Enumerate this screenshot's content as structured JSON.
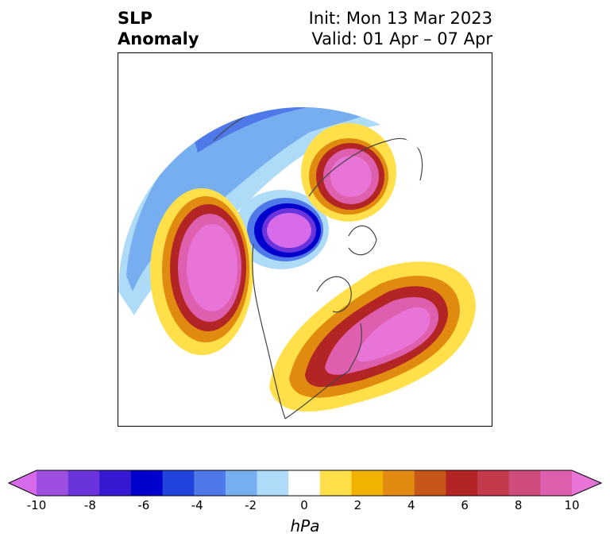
{
  "title": {
    "left_line1": "SLP",
    "left_line2": "Anomaly",
    "right_line1": "Init: Mon 13 Mar 2023",
    "right_line2": "Valid: 01 Apr – 07 Apr"
  },
  "colorbar": {
    "unit": "hPa",
    "ticks": [
      "-10",
      "-8",
      "-6",
      "-4",
      "-2",
      "0",
      "2",
      "4",
      "6",
      "8",
      "10"
    ],
    "colors": [
      "#d66ae8",
      "#9f4fe0",
      "#6a34dc",
      "#3518d0",
      "#0000cc",
      "#2244dd",
      "#4f78e8",
      "#77aef0",
      "#aedcf8",
      "#ffffff",
      "#ffe04a",
      "#f0b400",
      "#e08a10",
      "#c8561a",
      "#b32424",
      "#c23a4c",
      "#cf4d7d",
      "#dd5fae",
      "#e874d8"
    ],
    "extend": "both"
  },
  "map": {
    "projection": "north-polar-stereographic",
    "field": "SLP anomaly"
  }
}
